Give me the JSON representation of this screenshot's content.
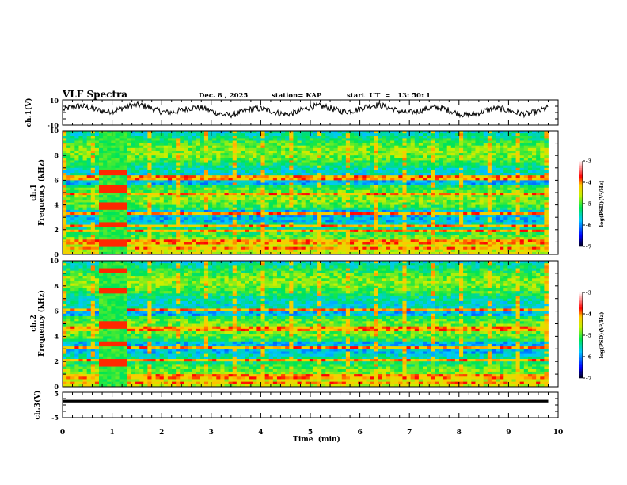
{
  "chart_data": [
    {
      "type": "line",
      "title": "VLF Spectra",
      "header": {
        "date": "Dec. 8  , 2025",
        "station": "station= KAP",
        "start": "start  UT  =   13: 50: 1"
      },
      "ylabel": "ch.1(V)",
      "ylim": [
        -10,
        10
      ],
      "yticks": [
        "10",
        "-10"
      ],
      "xlim": [
        0,
        10
      ],
      "data_end_min": 9.8,
      "series": [
        {
          "name": "ch.1 waveform",
          "baseline": 2,
          "amplitude": 5
        }
      ]
    },
    {
      "type": "heatmap",
      "ylabel_line1": "ch.1",
      "ylabel_line2": "Frequency (kHz)",
      "ylim": [
        0,
        10
      ],
      "yticks": [
        "0",
        "2",
        "4",
        "6",
        "8",
        "10"
      ],
      "xlim": [
        0,
        10
      ],
      "colorbar": {
        "label": "log(PSD)(V²/Hz)",
        "range": [
          -7,
          -3
        ],
        "ticks": [
          "-3",
          "-4",
          "-5",
          "-6",
          "-7"
        ]
      },
      "features": {
        "burst_start_min": 0.7,
        "burst_end_min": 1.3,
        "burst_bands_khz": [
          0.9,
          2.4,
          3.9,
          5.3,
          6.6
        ],
        "lines_khz": [
          0.5,
          1.0,
          1.9,
          2.3,
          3.3,
          4.9,
          6.2
        ]
      }
    },
    {
      "type": "heatmap",
      "ylabel_line1": "ch.2",
      "ylabel_line2": "Frequency (kHz)",
      "ylim": [
        0,
        10
      ],
      "yticks": [
        "0",
        "2",
        "4",
        "6",
        "8",
        "10"
      ],
      "xlim": [
        0,
        10
      ],
      "colorbar": {
        "label": "log(PSD)(V²/Hz)",
        "range": [
          -7,
          -3
        ],
        "ticks": [
          "-3",
          "-4",
          "-5",
          "-6",
          "-7"
        ]
      },
      "features": {
        "burst_start_min": 0.7,
        "burst_end_min": 1.3,
        "burst_bands_khz": [
          1.9,
          3.4,
          4.9,
          7.6,
          9.2
        ],
        "lines_khz": [
          0.3,
          0.8,
          2.1,
          3.1,
          4.6,
          6.1
        ]
      }
    },
    {
      "type": "line",
      "ylabel": "ch.3(V)",
      "ylim": [
        -5,
        5
      ],
      "yticks": [
        "5",
        "-5"
      ],
      "xlim": [
        0,
        10
      ],
      "xlabel": "Time  (min)",
      "xticks": [
        "0",
        "1",
        "2",
        "3",
        "4",
        "5",
        "6",
        "7",
        "8",
        "9",
        "10"
      ],
      "series": [
        {
          "name": "ch.3 level",
          "value": 1.5,
          "spread": 0.5
        }
      ]
    }
  ]
}
